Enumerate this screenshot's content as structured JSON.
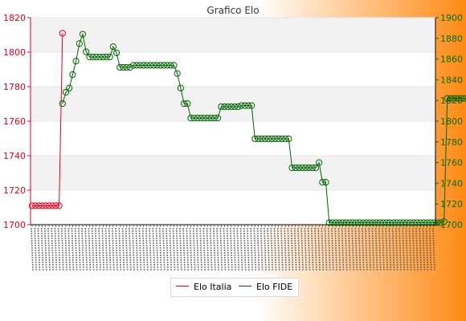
{
  "chart_data": {
    "type": "line",
    "title": "Grafico Elo",
    "background": {
      "gradient_from": "#ffffff",
      "gradient_to": "#ff8a14",
      "plot_bands": [
        "#f2f2f2",
        "#ffffff"
      ]
    },
    "axes": {
      "y_left": {
        "color": "#e0001b",
        "range": [
          1700,
          1820
        ],
        "ticks": [
          "1700",
          "1720",
          "1740",
          "1760",
          "1780",
          "1800",
          "1820"
        ]
      },
      "y_right": {
        "color": "#007000",
        "range": [
          1700,
          1900
        ],
        "ticks": [
          "1700",
          "1720",
          "1740",
          "1760",
          "1780",
          "1800",
          "1820",
          "1840",
          "1860",
          "1880",
          "1900"
        ]
      },
      "x": {
        "point_count": 120,
        "tick_labels_legible": false
      }
    },
    "grid": true,
    "legend": {
      "placement": "bottom-center"
    },
    "series": [
      {
        "name": "Elo Italia",
        "axis": "left",
        "color": "#e0001b",
        "values": [
          1711,
          1711,
          1711,
          1711,
          1711,
          1711,
          1711,
          1711,
          1711,
          1811
        ]
      },
      {
        "name": "Elo FIDE",
        "axis": "right",
        "color": "#006400",
        "values": [
          null,
          null,
          null,
          null,
          null,
          null,
          null,
          null,
          null,
          1817,
          1828,
          1832,
          1845,
          1858,
          1875,
          1884,
          1867,
          1862,
          1862,
          1862,
          1862,
          1862,
          1862,
          1862,
          1872,
          1866,
          1852,
          1852,
          1852,
          1852,
          1854,
          1854,
          1854,
          1854,
          1854,
          1854,
          1854,
          1854,
          1854,
          1854,
          1854,
          1854,
          1854,
          1846,
          1832,
          1817,
          1817,
          1803,
          1803,
          1803,
          1803,
          1803,
          1803,
          1803,
          1803,
          1803,
          1814,
          1814,
          1814,
          1814,
          1814,
          1814,
          1815,
          1815,
          1815,
          1815,
          1783,
          1783,
          1783,
          1783,
          1783,
          1783,
          1783,
          1783,
          1783,
          1783,
          1783,
          1755,
          1755,
          1755,
          1755,
          1755,
          1755,
          1755,
          1755,
          1760,
          1741,
          1741,
          1702,
          1702,
          1702,
          1702,
          1702,
          1702,
          1702,
          1702,
          1702,
          1702,
          1702,
          1702,
          1702,
          1702,
          1702,
          1702,
          1702,
          1702,
          1702,
          1702,
          1702,
          1702,
          1702,
          1702,
          1702,
          1702,
          1702,
          1702,
          1702,
          1702,
          1702,
          1702,
          1702,
          1702,
          1703,
          1822,
          1822,
          1822,
          1822,
          1822,
          1822,
          1822,
          1822,
          1822,
          1822,
          1822,
          1822,
          1822,
          1822,
          1822
        ]
      }
    ]
  }
}
